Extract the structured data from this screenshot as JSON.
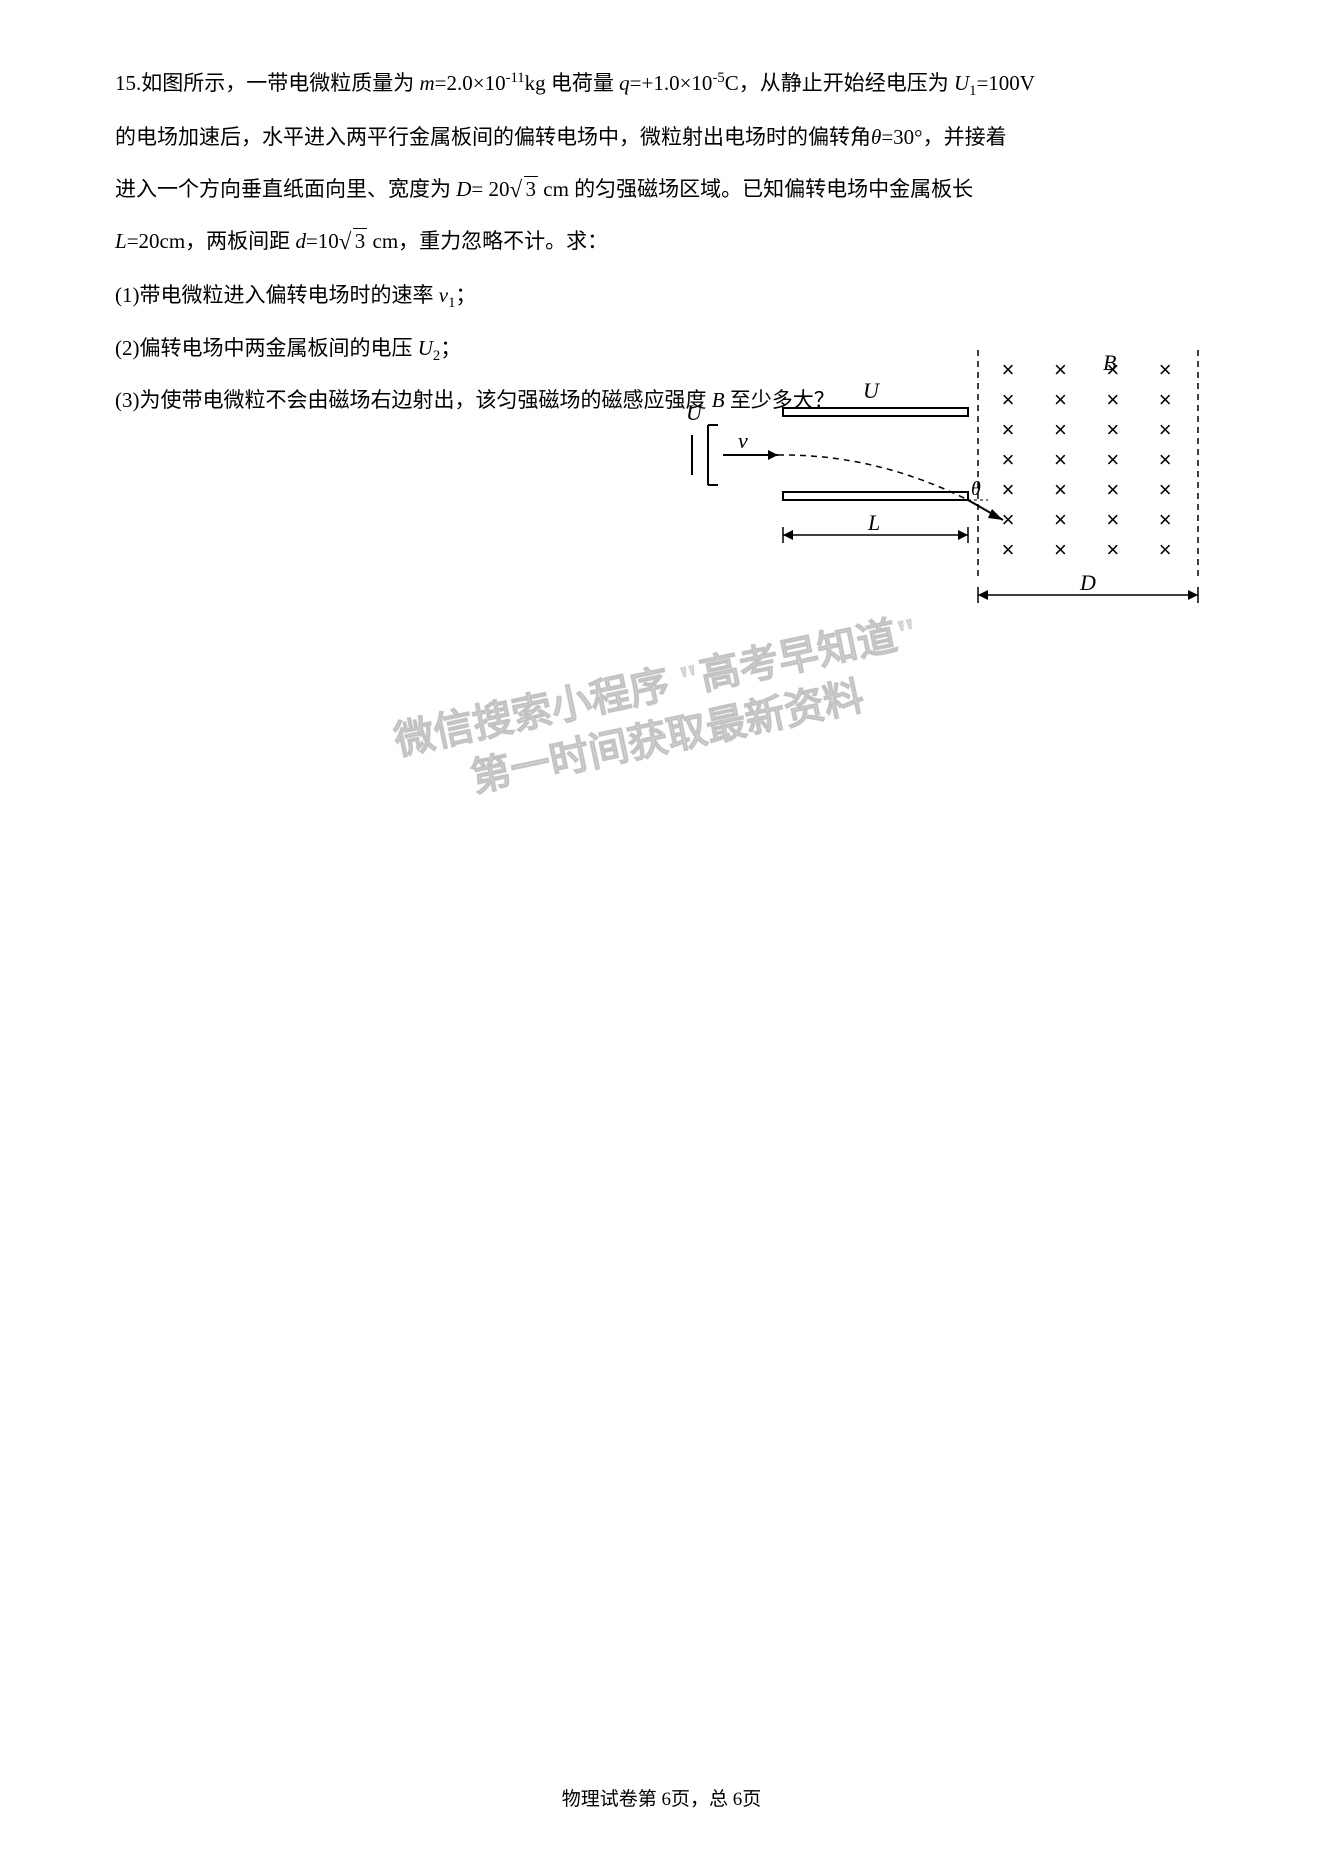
{
  "problem": {
    "number": "15",
    "line1_a": "15.如图所示，一带电微粒质量为",
    "m_label": "m",
    "m_eq": "=2.0×10",
    "m_exp": "-11",
    "m_unit": "kg 电荷量",
    "q_label": "q",
    "q_eq": "=+1.0×10",
    "q_exp": "-5",
    "q_unit": "C，从静止开始经电压为",
    "u1_label": "U",
    "u1_sub": "1",
    "u1_eq": "=100V",
    "line2": "的电场加速后，水平进入两平行金属板间的偏转电场中，微粒射出电场时的偏转角",
    "theta_label": "θ",
    "theta_eq": "=30°，并接着",
    "line3_a": "进入一个方向垂直纸面向里、宽度为 ",
    "d_cap_label": "D",
    "d_cap_eq": "= 20",
    "d_cap_sqrt": "3",
    "d_cap_unit": " cm 的匀强磁场区域。已知偏转电场中金属板长",
    "line4_a_label": "L",
    "line4_a_eq": "=20cm，两板间距 ",
    "d_low_label": "d",
    "d_low_eq": "=10",
    "d_low_sqrt": "3",
    "d_low_unit": " cm，重力忽略不计。求：",
    "q1": "(1)带电微粒进入偏转电场时的速率 ",
    "q1_v": "v",
    "q1_sub": "1",
    "q1_end": "；",
    "q2": "(2)偏转电场中两金属板间的电压 ",
    "q2_u": "U",
    "q2_sub": "2",
    "q2_end": "；",
    "q3": "(3)为使带电微粒不会由磁场右边射出，该匀强磁场的磁感应强度 ",
    "q3_b": "B",
    "q3_end": " 至少多大？"
  },
  "diagram": {
    "labels": {
      "U_acc": "U",
      "U_def": "U",
      "v": "v",
      "theta": "θ",
      "L": "L",
      "D": "D",
      "B": "B"
    },
    "field_cols": 4,
    "field_rows": 7,
    "colors": {
      "stroke": "#000000",
      "dash": "#000000",
      "text": "#000000",
      "fill": "none",
      "bg": "#ffffff"
    },
    "stroke_width": 2,
    "dash_pattern": "6,5"
  },
  "watermark": {
    "line1": "微信搜索小程序 \"高考早知道\"",
    "line2": "第一时间获取最新资料"
  },
  "footer": {
    "text": "物理试卷第 6页，总 6页"
  }
}
